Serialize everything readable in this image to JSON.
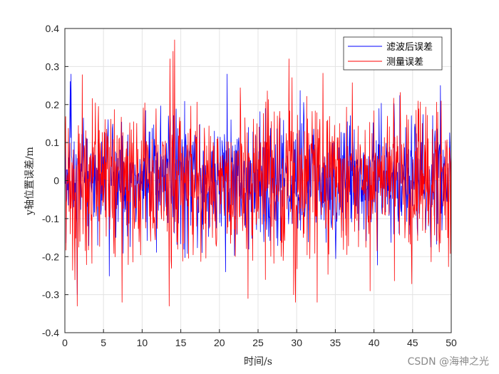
{
  "chart_data": {
    "type": "line",
    "title": "",
    "xlabel": "时间/s",
    "ylabel": "y轴位置误差/m",
    "xlim": [
      0,
      50
    ],
    "ylim": [
      -0.4,
      0.4
    ],
    "xticks": [
      "0",
      "5",
      "10",
      "15",
      "20",
      "25",
      "30",
      "35",
      "40",
      "45",
      "50"
    ],
    "yticks": [
      "-0.4",
      "-0.3",
      "-0.2",
      "-0.1",
      "0",
      "0.1",
      "0.2",
      "0.3",
      "0.4"
    ],
    "grid": true,
    "legend_position": "top-right",
    "series": [
      {
        "name": "滤波后误差",
        "color": "#0000ff",
        "noise_std": 0.085,
        "x_step": 0.05,
        "peaks": [
          {
            "x": 0.8,
            "y": 0.28
          },
          {
            "x": 1.6,
            "y": -0.3
          },
          {
            "x": 21.0,
            "y": 0.28
          },
          {
            "x": 20.8,
            "y": -0.24
          },
          {
            "x": 48.6,
            "y": 0.25
          }
        ]
      },
      {
        "name": "测量误差",
        "color": "#ff0000",
        "noise_std": 0.1,
        "x_step": 0.05,
        "peaks": [
          {
            "x": 1.6,
            "y": -0.33
          },
          {
            "x": 13.5,
            "y": -0.33
          },
          {
            "x": 14.2,
            "y": 0.37
          },
          {
            "x": 14.0,
            "y": 0.34
          },
          {
            "x": 29.0,
            "y": 0.32
          },
          {
            "x": 29.6,
            "y": -0.3
          },
          {
            "x": 39.5,
            "y": -0.29
          },
          {
            "x": 23.7,
            "y": -0.31
          }
        ]
      }
    ]
  },
  "watermark": "CSDN @海神之光"
}
